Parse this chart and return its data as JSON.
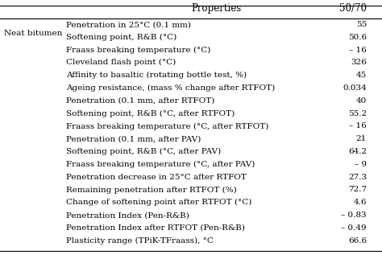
{
  "col_headers": [
    "Properties",
    "50/70"
  ],
  "row_label": "Neat bitumen",
  "properties": [
    "Penetration in 25°C (0.1 mm)",
    "Softening point, R&B (°C)",
    "Fraass breaking temperature (°C)",
    "Cleveland flash point (°C)",
    "Affinity to basaltic (rotating bottle test, %)",
    "Ageing resistance, (mass % change after RTFOT)",
    "Penetration (0.1 mm, after RTFOT)",
    "Softening point, R&B (°C, after RTFOT)",
    "Fraass breaking temperature (°C, after RTFOT)",
    "Penetration (0.1 mm, after PAV)",
    "Softening point, R&B (°C, after PAV)",
    "Fraass breaking temperature (°C, after PAV)",
    "Penetration decrease in 25°C after RTFOT",
    "Remaining penetration after RTFOT (%)",
    "Change of softening point after RTFOT (°C)",
    "Penetration Index (Pen-R&B)",
    "Penetration Index after RTFOT (Pen-R&B)",
    "Plasticity range (TPiK-TFraass), °C"
  ],
  "values": [
    "55",
    "50.6",
    "– 16",
    "326",
    "45",
    "0.034",
    "40",
    "55.2",
    "– 16",
    "21",
    "64.2",
    "– 9",
    "27.3",
    "72.7",
    "4.6",
    "– 0.83",
    "– 0.49",
    "66.6"
  ],
  "bg_color": "#ffffff",
  "text_color": "#000000",
  "header_line_color": "#000000",
  "font_size": 7.5,
  "header_font_size": 8.5
}
